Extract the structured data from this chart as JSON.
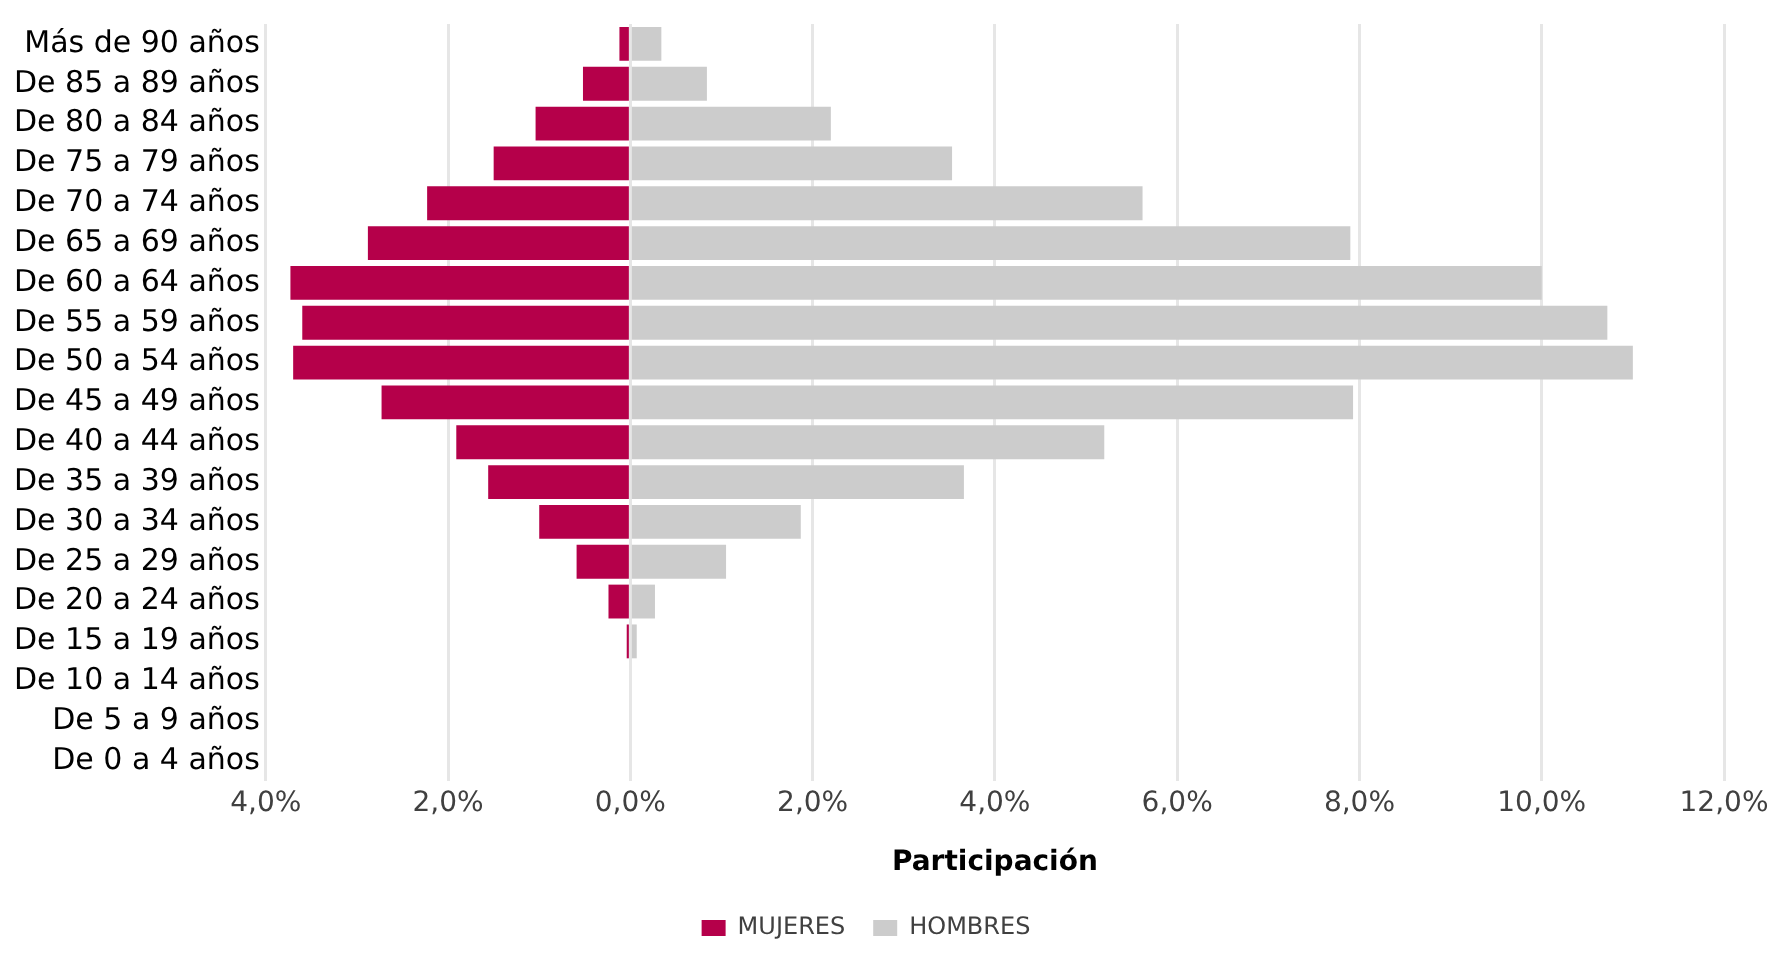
{
  "chart_data": {
    "type": "bar",
    "orientation": "horizontal",
    "stacked": true,
    "xlabel": "Participación",
    "categories": [
      "Más de 90 años",
      "De 85 a 89 años",
      "De 80 a 84 años",
      "De 75 a 79 años",
      "De 70 a 74 años",
      "De 65 a 69 años",
      "De 60 a 64 años",
      "De 55 a 59 años",
      "De 50 a 54 años",
      "De 45 a 49 años",
      "De 40 a 44 años",
      "De 35 a 39 años",
      "De 30 a 34 años",
      "De 25 a 29 años",
      "De 20 a 24 años",
      "De 15 a 19 años",
      "De 10 a 14 años",
      "De 5 a 9 años",
      "De 0 a 4 años"
    ],
    "series": [
      {
        "name": "MUJERES",
        "color": "#b5004a",
        "values": [
          -0.12,
          -0.52,
          -1.04,
          -1.5,
          -2.23,
          -2.88,
          -3.73,
          -3.6,
          -3.7,
          -2.73,
          -1.91,
          -1.56,
          -1.0,
          -0.59,
          -0.24,
          -0.04,
          0,
          0,
          0
        ]
      },
      {
        "name": "HOMBRES",
        "color": "#cccccc",
        "values": [
          0.34,
          0.84,
          2.2,
          3.53,
          5.62,
          7.9,
          10.0,
          10.72,
          11.0,
          7.93,
          5.2,
          3.66,
          1.87,
          1.05,
          0.27,
          0.07,
          0,
          0,
          0
        ]
      }
    ],
    "xlim": [
      -4,
      12
    ],
    "xticks": [
      {
        "value": -4,
        "label": "4,0%"
      },
      {
        "value": -2,
        "label": "2,0%"
      },
      {
        "value": 0,
        "label": "0,0%"
      },
      {
        "value": 2,
        "label": "2,0%"
      },
      {
        "value": 4,
        "label": "4,0%"
      },
      {
        "value": 6,
        "label": "6,0%"
      },
      {
        "value": 8,
        "label": "8,0%"
      },
      {
        "value": 10,
        "label": "10,0%"
      },
      {
        "value": 12,
        "label": "12,0%"
      }
    ],
    "grid": "x",
    "legend": "bottom"
  }
}
